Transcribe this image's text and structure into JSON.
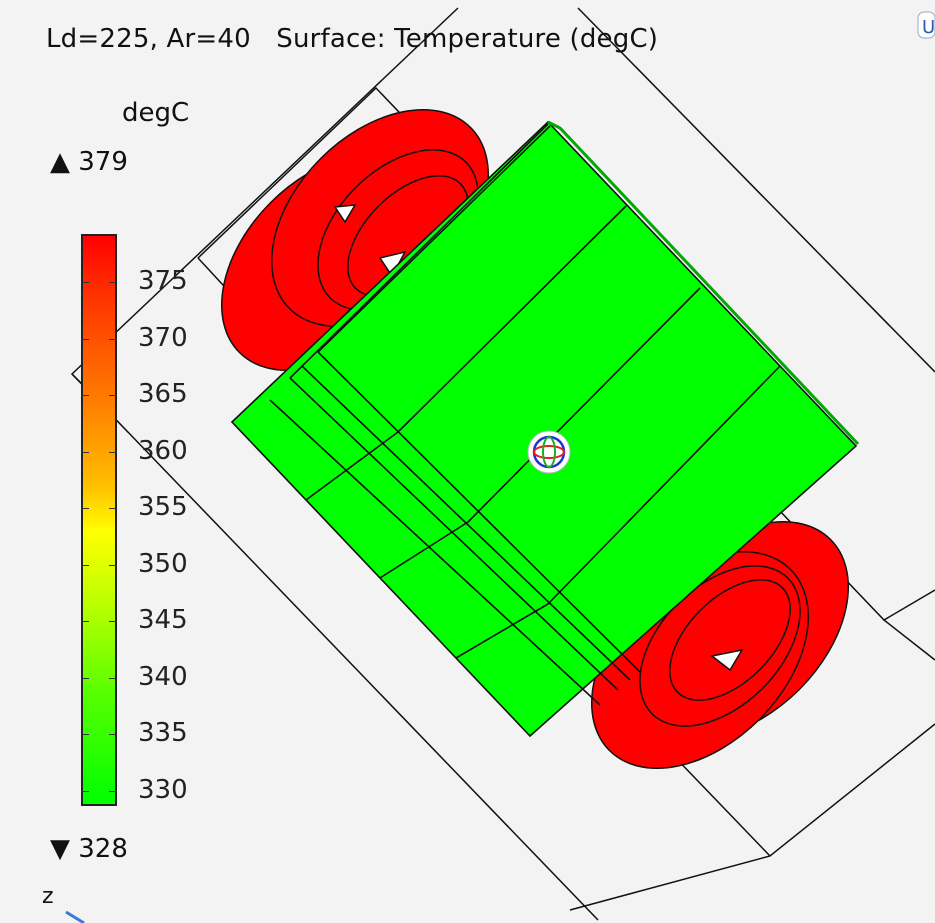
{
  "plot": {
    "title": "Ld=225, Ar=40   Surface: Temperature (degC)"
  },
  "legend": {
    "unit": "degC",
    "max_value": "379",
    "min_value": "328",
    "max_marker": "▲",
    "min_marker": "▼",
    "ticks": [
      "375",
      "370",
      "365",
      "360",
      "355",
      "350",
      "345",
      "340",
      "335",
      "330"
    ],
    "colors": {
      "high": "#ff0000",
      "mid": "#ffff00",
      "low": "#00ff00"
    }
  },
  "axes": {
    "z_label": "z"
  },
  "colors": {
    "coil": "#ff0000",
    "core": "#00ff00",
    "edge": "#111111",
    "background": "#f3f3f3"
  }
}
